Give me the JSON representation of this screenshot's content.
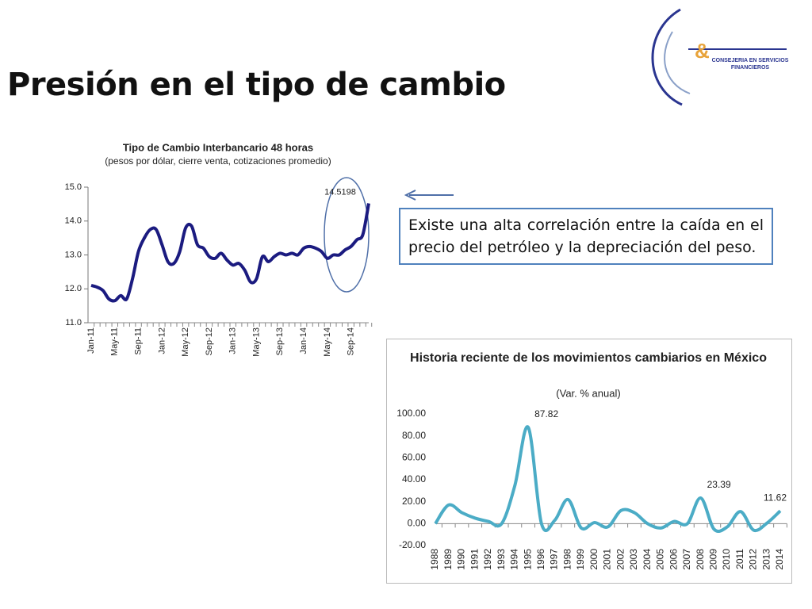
{
  "title": "Presión en el tipo de cambio",
  "logo": {
    "symbol": "&",
    "line1": "CONSEJERIA EN SERVICIOS",
    "line2": "FINANCIEROS"
  },
  "callout": "Existe una alta correlación entre la caída en el precio del petróleo y la depreciación del peso.",
  "chart_data": [
    {
      "type": "line",
      "title": "Tipo de Cambio Interbancario  48 horas",
      "subtitle": "(pesos por dólar, cierre venta, cotizaciones promedio)",
      "categories": [
        "Jan-11",
        null,
        null,
        null,
        "May-11",
        null,
        null,
        null,
        "Sep-11",
        null,
        null,
        null,
        "Jan-12",
        null,
        null,
        null,
        "May-12",
        null,
        null,
        null,
        "Sep-12",
        null,
        null,
        null,
        "Jan-13",
        null,
        null,
        null,
        "May-13",
        null,
        null,
        null,
        "Sep-13",
        null,
        null,
        null,
        "Jan-14",
        null,
        null,
        null,
        "May-14",
        null,
        null,
        null,
        "Sep-14",
        null,
        null,
        null
      ],
      "values": [
        12.1,
        12.05,
        11.95,
        11.7,
        11.65,
        11.8,
        11.7,
        12.3,
        13.1,
        13.5,
        13.75,
        13.75,
        13.3,
        12.8,
        12.75,
        13.1,
        13.8,
        13.85,
        13.3,
        13.2,
        12.95,
        12.9,
        13.05,
        12.85,
        12.7,
        12.75,
        12.55,
        12.2,
        12.3,
        12.95,
        12.8,
        12.95,
        13.05,
        13.0,
        13.05,
        13.0,
        13.2,
        13.25,
        13.2,
        13.1,
        12.9,
        13.0,
        13.0,
        13.15,
        13.25,
        13.45,
        13.6,
        14.5198
      ],
      "value_labels": [
        null,
        null,
        null,
        null,
        null,
        null,
        null,
        null,
        null,
        null,
        null,
        null,
        null,
        null,
        null,
        null,
        null,
        null,
        null,
        null,
        null,
        null,
        null,
        null,
        null,
        null,
        null,
        null,
        null,
        null,
        null,
        null,
        null,
        null,
        null,
        null,
        null,
        null,
        null,
        null,
        null,
        null,
        null,
        null,
        null,
        null,
        null,
        "14.5198"
      ],
      "color": "#1b1b80",
      "ylim": [
        11,
        15
      ],
      "yticks": [
        {
          "value": 11,
          "label": "11.0"
        },
        {
          "value": 12,
          "label": "12.0"
        },
        {
          "value": 13,
          "label": "13.0"
        },
        {
          "value": 14,
          "label": "14.0"
        },
        {
          "value": 15,
          "label": "15.0"
        }
      ]
    },
    {
      "type": "line",
      "title": "Historia reciente de los movimientos cambiarios en México",
      "subtitle": "(Var. % anual)",
      "categories": [
        "1988",
        "1989",
        "1990",
        "1991",
        "1992",
        "1993",
        "1994",
        "1995",
        "1996",
        "1997",
        "1998",
        "1999",
        "2000",
        "2001",
        "2002",
        "2003",
        "2004",
        "2005",
        "2006",
        "2007",
        "2008",
        "2009",
        "2010",
        "2011",
        "2012",
        "2013",
        "2014"
      ],
      "values": [
        0,
        17,
        10,
        5,
        2,
        0,
        35,
        87.82,
        0,
        3,
        22,
        -4,
        1,
        -3,
        12,
        10,
        0,
        -4,
        2,
        0,
        23.39,
        -5,
        -3,
        11,
        -6,
        0.5,
        11.62
      ],
      "value_labels": [
        null,
        null,
        null,
        null,
        null,
        null,
        null,
        "87.82",
        null,
        null,
        null,
        null,
        null,
        null,
        null,
        null,
        null,
        null,
        null,
        null,
        "23.39",
        null,
        null,
        null,
        null,
        null,
        "11.62"
      ],
      "color": "#4bacc6",
      "ylim": [
        -20,
        100
      ],
      "yticks": [
        {
          "value": -20,
          "label": "-20.00"
        },
        {
          "value": 0,
          "label": "0.00"
        },
        {
          "value": 20,
          "label": "20.00"
        },
        {
          "value": 40,
          "label": "40.00"
        },
        {
          "value": 60,
          "label": "60.00"
        },
        {
          "value": 80,
          "label": "80.00"
        },
        {
          "value": 100,
          "label": "100.00"
        }
      ]
    }
  ]
}
